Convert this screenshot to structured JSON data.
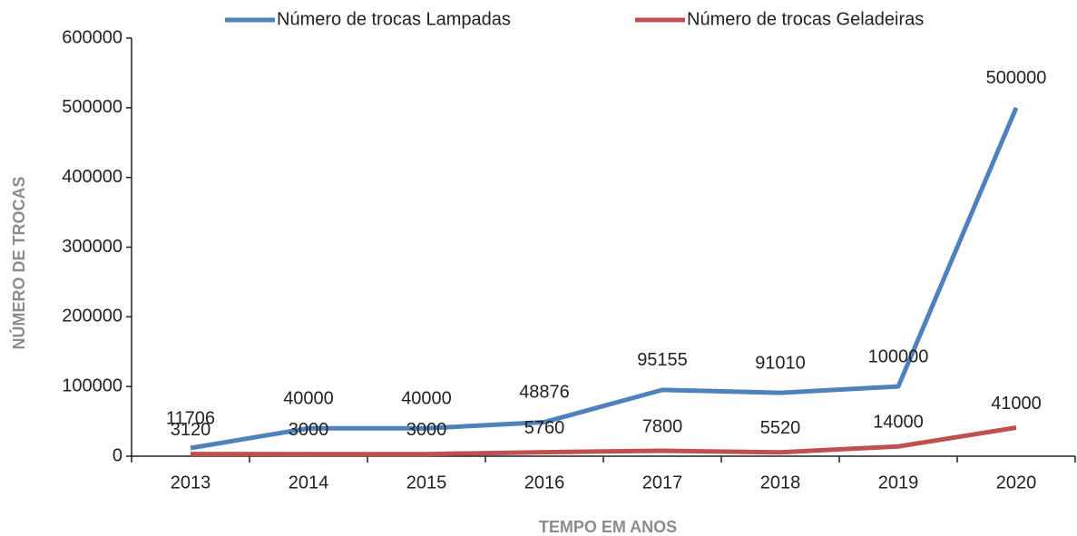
{
  "chart_data": {
    "type": "line",
    "x_label": "TEMPO EM ANOS",
    "y_label": "NÚMERO DE TROCAS",
    "categories": [
      "2013",
      "2014",
      "2015",
      "2016",
      "2017",
      "2018",
      "2019",
      "2020"
    ],
    "series": [
      {
        "name": "Número de trocas Lampadas",
        "color": "#4f81bd",
        "values": [
          11706,
          40000,
          40000,
          48876,
          95155,
          91010,
          100000,
          500000
        ]
      },
      {
        "name": "Número de trocas Geladeiras",
        "color": "#c0504d",
        "values": [
          3120,
          3000,
          3000,
          5760,
          7800,
          5520,
          14000,
          41000
        ]
      }
    ],
    "ylim": [
      0,
      600000
    ],
    "yticks": [
      0,
      100000,
      200000,
      300000,
      400000,
      500000,
      600000
    ],
    "grid": false,
    "legend": "top"
  }
}
